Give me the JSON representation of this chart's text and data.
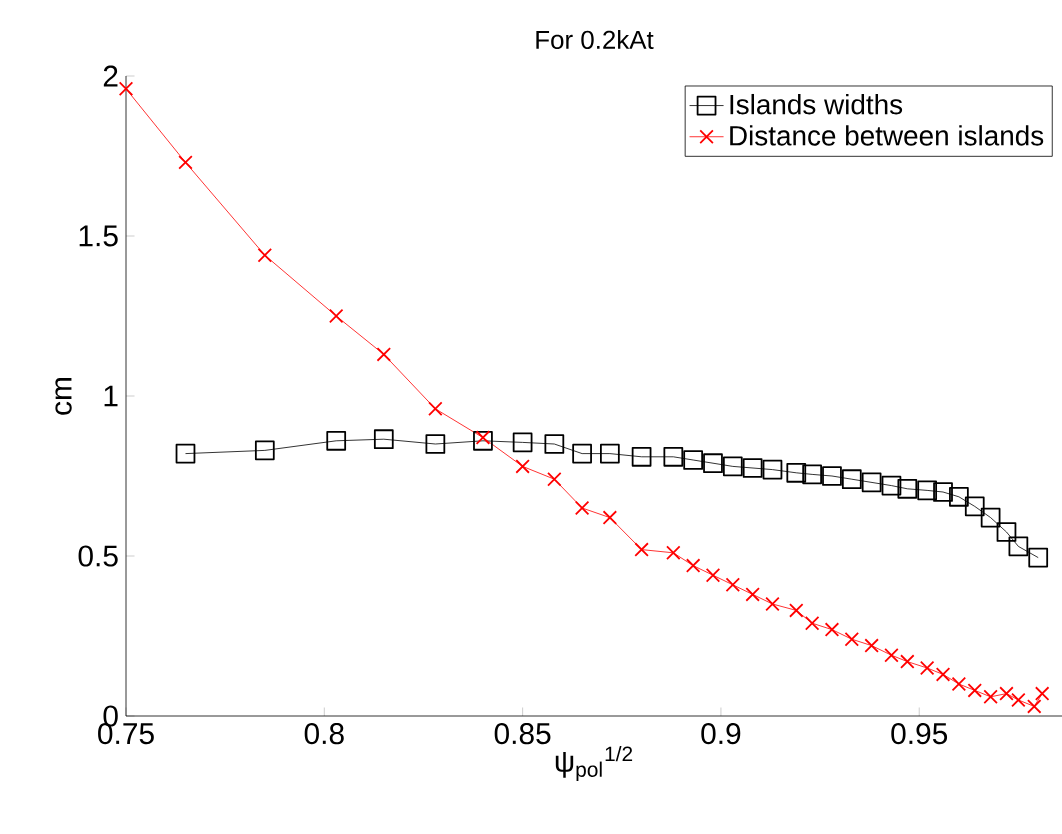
{
  "chart_data": {
    "type": "line",
    "title": "For 0.2kAt",
    "xlabel": "ψ$_{pol}$$^{1/2}$",
    "ylabel": "cm",
    "xlim": [
      0.75,
      0.986
    ],
    "ylim": [
      0,
      2
    ],
    "xticks": [
      0.75,
      0.8,
      0.85,
      0.9,
      0.95
    ],
    "yticks": [
      0,
      0.5,
      1,
      1.5,
      2
    ],
    "grid": false,
    "legend": "top right",
    "line_style": "solid",
    "series": [
      {
        "name": "Islands widths",
        "color": "#000000",
        "marker": "square",
        "x": [
          0.765,
          0.785,
          0.803,
          0.815,
          0.828,
          0.84,
          0.85,
          0.858,
          0.865,
          0.872,
          0.88,
          0.888,
          0.893,
          0.898,
          0.903,
          0.908,
          0.913,
          0.919,
          0.923,
          0.928,
          0.933,
          0.938,
          0.943,
          0.947,
          0.952,
          0.956,
          0.96,
          0.964,
          0.968,
          0.972,
          0.975,
          0.98
        ],
        "values": [
          0.82,
          0.83,
          0.86,
          0.865,
          0.85,
          0.86,
          0.855,
          0.85,
          0.82,
          0.82,
          0.81,
          0.81,
          0.8,
          0.79,
          0.78,
          0.775,
          0.77,
          0.76,
          0.755,
          0.75,
          0.74,
          0.73,
          0.72,
          0.71,
          0.705,
          0.7,
          0.685,
          0.655,
          0.62,
          0.575,
          0.53,
          0.495
        ]
      },
      {
        "name": "Distance between islands",
        "color": "#ff0000",
        "marker": "cross",
        "x": [
          0.75,
          0.765,
          0.785,
          0.803,
          0.815,
          0.828,
          0.84,
          0.85,
          0.858,
          0.865,
          0.872,
          0.88,
          0.888,
          0.893,
          0.898,
          0.903,
          0.908,
          0.913,
          0.919,
          0.923,
          0.928,
          0.933,
          0.938,
          0.943,
          0.947,
          0.952,
          0.956,
          0.96,
          0.964,
          0.968,
          0.972,
          0.975,
          0.979,
          0.981
        ],
        "values": [
          1.96,
          1.73,
          1.44,
          1.25,
          1.13,
          0.96,
          0.87,
          0.78,
          0.74,
          0.65,
          0.62,
          0.52,
          0.51,
          0.47,
          0.44,
          0.41,
          0.38,
          0.35,
          0.33,
          0.29,
          0.27,
          0.24,
          0.22,
          0.19,
          0.17,
          0.15,
          0.13,
          0.1,
          0.08,
          0.06,
          0.07,
          0.05,
          0.03,
          0.07
        ]
      }
    ]
  }
}
